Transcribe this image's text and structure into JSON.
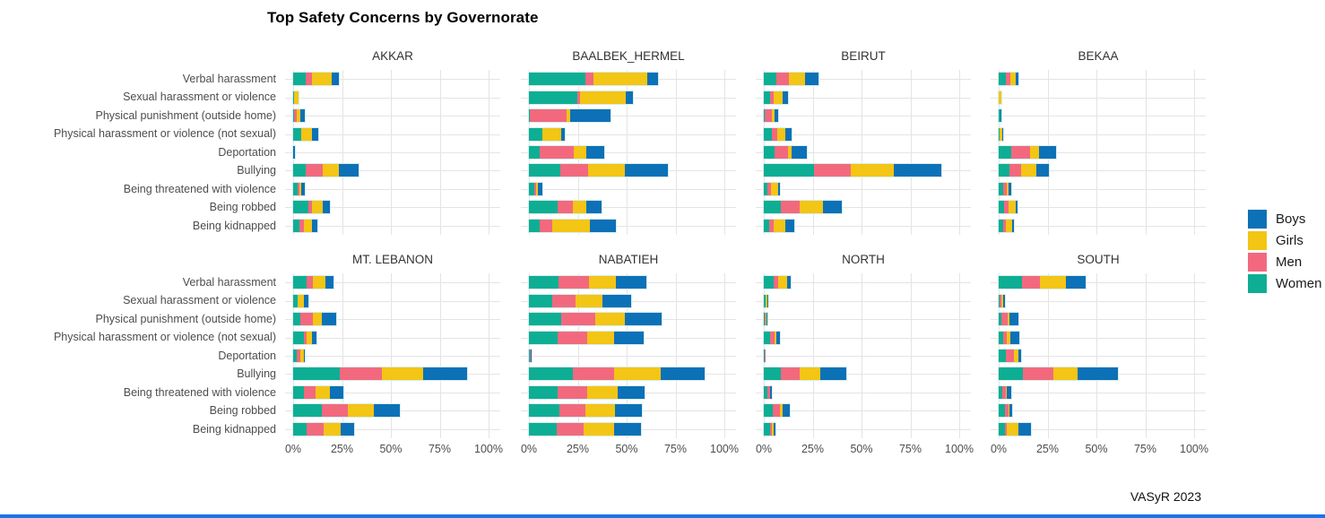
{
  "page": {
    "title": "Top Safety Concerns by Governorate",
    "caption": "VASyR 2023"
  },
  "colors": {
    "gridline": "#E4E4E4",
    "axis_text": "#4D4D4D",
    "strip_text": "#333333",
    "bar_outline": "#D9EDEF",
    "bottom_bar": "#1A73E8"
  },
  "chart_data": {
    "type": "bar",
    "orientation": "horizontal",
    "stacked": true,
    "grid": true,
    "title": "Top Safety Concerns by Governorate",
    "caption": "VASyR 2023",
    "x_axis": {
      "ticks": [
        "0%",
        "25%",
        "50%",
        "75%",
        "100%"
      ],
      "range": [
        0,
        100
      ],
      "unit": "percent"
    },
    "categories": [
      "Verbal harassment",
      "Sexual harassment or violence",
      "Physical punishment (outside home)",
      "Physical harassment or violence (not sexual)",
      "Deportation",
      "Bullying",
      "Being threatened with violence",
      "Being robbed",
      "Being kidnapped"
    ],
    "legend": {
      "position": "right",
      "entries": [
        {
          "label": "Boys",
          "key": "boys",
          "color": "#0C71B7"
        },
        {
          "label": "Girls",
          "key": "girls",
          "color": "#F3C515"
        },
        {
          "label": "Men",
          "key": "men",
          "color": "#F2697E"
        },
        {
          "label": "Women",
          "key": "women",
          "color": "#0EAE94"
        }
      ]
    },
    "stack_order": [
      "women",
      "men",
      "girls",
      "boys"
    ],
    "series_colors": {
      "women": "#0EAE94",
      "men": "#F2697E",
      "girls": "#F3C515",
      "boys": "#0C71B7"
    },
    "facet_grid": {
      "rows": 2,
      "cols": 4
    },
    "facets": [
      {
        "name": "AKKAR",
        "values": {
          "women": [
            6.5,
            0.3,
            0.5,
            4.0,
            0.0,
            6.4,
            2.3,
            8.0,
            3.0
          ],
          "men": [
            3.3,
            0.0,
            1.5,
            0.0,
            0.0,
            8.8,
            1.0,
            1.8,
            2.6
          ],
          "girls": [
            10.0,
            2.3,
            1.5,
            5.5,
            0.0,
            8.3,
            1.0,
            5.3,
            3.9
          ],
          "boys": [
            3.6,
            0.0,
            2.5,
            3.5,
            0.7,
            9.8,
            1.8,
            3.8,
            2.9
          ]
        }
      },
      {
        "name": "BAALBEK_HERMEL",
        "values": {
          "women": [
            28.7,
            24.6,
            0.4,
            6.9,
            5.7,
            16.2,
            2.6,
            14.6,
            5.4
          ],
          "men": [
            4.3,
            1.5,
            19.0,
            0.0,
            17.4,
            14.2,
            1.2,
            7.7,
            6.5
          ],
          "girls": [
            27.6,
            23.5,
            1.8,
            9.7,
            6.2,
            18.9,
            0.8,
            7.2,
            19.2
          ],
          "boys": [
            5.5,
            3.4,
            20.4,
            1.8,
            9.1,
            22.0,
            2.3,
            7.8,
            13.5
          ]
        }
      },
      {
        "name": "BEIRUT",
        "values": {
          "women": [
            6.6,
            3.0,
            0.5,
            4.2,
            5.7,
            25.7,
            2.0,
            8.8,
            2.6
          ],
          "men": [
            6.2,
            2.0,
            3.7,
            2.5,
            6.6,
            18.6,
            1.8,
            9.7,
            2.5
          ],
          "girls": [
            8.3,
            4.6,
            1.2,
            4.2,
            2.0,
            22.3,
            3.4,
            11.8,
            5.7
          ],
          "boys": [
            7.1,
            3.0,
            1.8,
            3.5,
            7.7,
            24.2,
            1.2,
            9.7,
            4.6
          ]
        }
      },
      {
        "name": "BEKAA",
        "values": {
          "women": [
            3.5,
            0.2,
            0.8,
            0.4,
            6.5,
            5.5,
            2.4,
            2.7,
            2.4
          ],
          "men": [
            2.6,
            0.0,
            0.0,
            0.0,
            9.5,
            6.0,
            1.8,
            2.3,
            1.5
          ],
          "girls": [
            2.4,
            1.3,
            0.0,
            1.5,
            4.8,
            7.6,
            0.8,
            3.5,
            3.0
          ],
          "boys": [
            1.5,
            0.0,
            0.8,
            0.5,
            8.6,
            6.8,
            1.5,
            1.2,
            1.0
          ]
        }
      },
      {
        "name": "MT. LEBANON",
        "values": {
          "women": [
            6.9,
            2.3,
            3.8,
            5.3,
            1.8,
            23.7,
            5.6,
            14.8,
            6.9
          ],
          "men": [
            3.4,
            0.0,
            6.1,
            1.5,
            2.0,
            21.7,
            5.8,
            13.0,
            8.7
          ],
          "girls": [
            6.1,
            3.0,
            4.9,
            3.0,
            1.5,
            21.1,
            7.6,
            13.4,
            8.9
          ],
          "boys": [
            4.3,
            2.3,
            7.3,
            2.3,
            0.8,
            22.4,
            6.9,
            13.3,
            6.9
          ]
        }
      },
      {
        "name": "NABATIEH",
        "values": {
          "women": [
            15.3,
            11.8,
            16.3,
            14.8,
            0.4,
            22.7,
            14.8,
            15.6,
            14.0
          ],
          "men": [
            15.3,
            12.2,
            17.6,
            15.0,
            0.3,
            21.1,
            15.0,
            13.3,
            14.2
          ],
          "girls": [
            14.0,
            13.7,
            15.3,
            13.7,
            0.4,
            23.7,
            15.6,
            15.3,
            15.6
          ],
          "boys": [
            15.6,
            14.5,
            18.6,
            15.3,
            0.3,
            22.6,
            13.7,
            13.7,
            13.4
          ]
        }
      },
      {
        "name": "NORTH",
        "values": {
          "women": [
            5.1,
            0.7,
            0.3,
            3.3,
            0.3,
            8.8,
            2.0,
            4.6,
            3.0
          ],
          "men": [
            2.2,
            0.0,
            0.5,
            2.1,
            0.2,
            9.7,
            1.0,
            3.5,
            1.0
          ],
          "girls": [
            4.6,
            1.0,
            0.5,
            0.9,
            0.0,
            10.3,
            0.3,
            1.5,
            1.2
          ],
          "boys": [
            1.7,
            0.3,
            0.5,
            2.0,
            0.0,
            13.5,
            1.0,
            3.7,
            0.8
          ]
        }
      },
      {
        "name": "SOUTH",
        "values": {
          "women": [
            11.8,
            0.5,
            1.5,
            2.4,
            3.5,
            12.6,
            2.0,
            3.0,
            3.0
          ],
          "men": [
            9.1,
            1.0,
            3.0,
            1.8,
            4.1,
            15.6,
            1.5,
            2.0,
            1.0
          ],
          "girls": [
            13.3,
            1.0,
            1.2,
            1.8,
            2.4,
            12.4,
            0.5,
            0.5,
            6.0
          ],
          "boys": [
            10.5,
            0.5,
            4.5,
            4.5,
            1.5,
            20.2,
            2.5,
            1.5,
            6.4
          ]
        }
      }
    ]
  }
}
